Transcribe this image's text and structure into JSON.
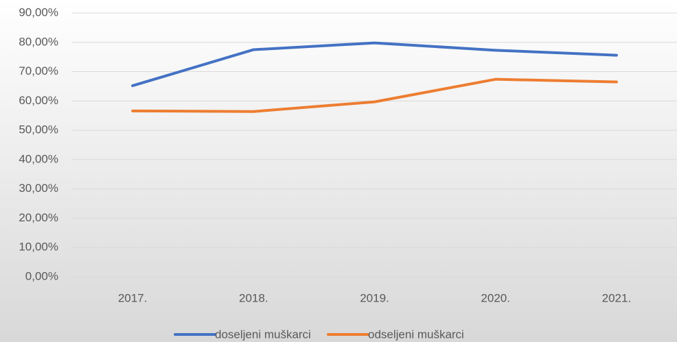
{
  "chart_data": {
    "type": "line",
    "categories": [
      "2017.",
      "2018.",
      "2019.",
      "2020.",
      "2021."
    ],
    "series": [
      {
        "name": "doseljeni muškarci",
        "color": "#4472c4",
        "values": [
          65.2,
          77.5,
          79.8,
          77.3,
          75.6
        ]
      },
      {
        "name": "odseljeni muškarci",
        "color": "#ed7d31",
        "values": [
          56.6,
          56.4,
          59.7,
          67.4,
          66.5
        ]
      }
    ],
    "ylim": [
      0,
      90
    ],
    "yticks": [
      {
        "value": 0,
        "label": "0,00%"
      },
      {
        "value": 10,
        "label": "10,00%"
      },
      {
        "value": 20,
        "label": "20,00%"
      },
      {
        "value": 30,
        "label": "30,00%"
      },
      {
        "value": 40,
        "label": "40,00%"
      },
      {
        "value": 50,
        "label": "50,00%"
      },
      {
        "value": 60,
        "label": "60,00%"
      },
      {
        "value": 70,
        "label": "70,00%"
      },
      {
        "value": 80,
        "label": "80,00%"
      },
      {
        "value": 90,
        "label": "90,00%"
      }
    ],
    "grid": true,
    "legend": "bottom"
  }
}
